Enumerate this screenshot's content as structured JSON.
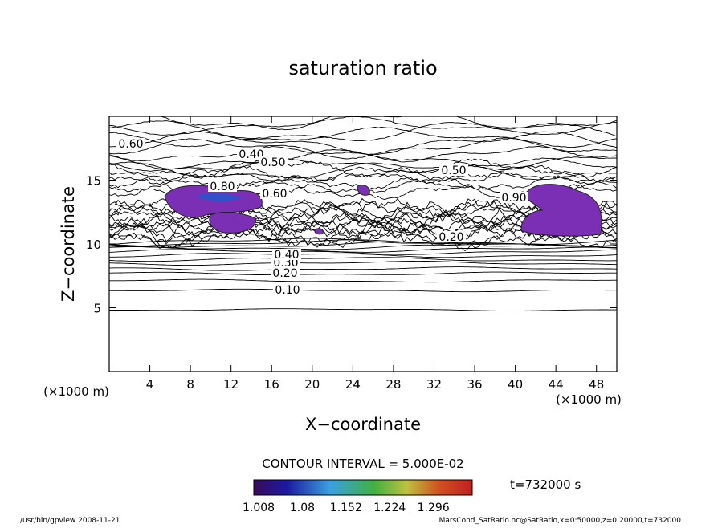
{
  "chart_data": {
    "type": "contour",
    "title": "saturation ratio",
    "x_label": "X−coordinate",
    "y_label": "Z−coordinate",
    "x_unit": "(×1000 m)",
    "y_unit": "(×1000 m)",
    "xlim": [
      0,
      50
    ],
    "xticks": [
      4,
      8,
      12,
      16,
      20,
      24,
      28,
      32,
      36,
      40,
      44,
      48
    ],
    "ylim": [
      0,
      20
    ],
    "yticks": [
      5,
      10,
      15
    ],
    "contour_labels": [
      "0.10",
      "0.20",
      "0.30",
      "0.40",
      "0.50",
      "0.60",
      "0.80",
      "0.90"
    ],
    "contour_interval": "CONTOUR INTERVAL = 5.000E-02",
    "time": "t=732000 s",
    "colorbar": {
      "clim": [
        1.0,
        1.36
      ],
      "ticks": [
        1.008,
        1.08,
        1.152,
        1.224,
        1.296
      ]
    },
    "footer_left": "/usr/bin/gpview   2008-11-21",
    "footer_right": "MarsCond_SatRatio.nc@SatRatio,x=0:50000,z=0:20000,t=732000"
  }
}
